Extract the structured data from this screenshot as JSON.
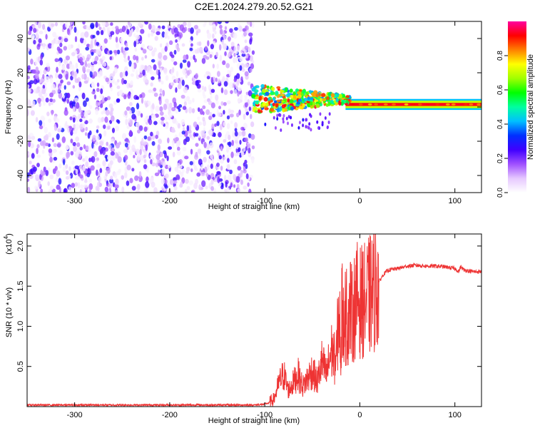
{
  "figure_title": "C2E1.2024.279.20.52.G21",
  "chart_data": [
    {
      "type": "heatmap",
      "title": "C2E1.2024.279.20.52.G21",
      "xlabel": "Height of straight line (km)",
      "ylabel": "Frequency (Hz)",
      "xlim": [
        -350,
        128
      ],
      "ylim": [
        -50,
        50
      ],
      "xticks": [
        -300,
        -200,
        -100,
        0,
        100
      ],
      "xtick_labels": [
        "-300",
        "-200",
        "-100",
        "0",
        "100"
      ],
      "yticks": [
        -40,
        -20,
        0,
        20,
        40
      ],
      "ytick_labels": [
        "-40",
        "-20",
        "0",
        "20",
        "40"
      ],
      "colorbar": {
        "label": "Normalized spectral amplitude",
        "range": [
          0,
          1
        ],
        "ticks": [
          0.0,
          0.2,
          0.4,
          0.6,
          0.8
        ],
        "tick_labels": [
          "0.0",
          "0.2",
          "0.4",
          "0.6",
          "0.8"
        ],
        "colors": [
          "#ffffff",
          "#e6c8ff",
          "#a050ff",
          "#4000ff",
          "#0030ff",
          "#00c0ff",
          "#00ffa0",
          "#00ff00",
          "#a0ff00",
          "#ffff00",
          "#ff8000",
          "#ff0000",
          "#ff00a0"
        ]
      },
      "regions": [
        {
          "name": "noise",
          "x_range": [
            -350,
            -112
          ],
          "y_range": [
            -50,
            50
          ],
          "amplitude_range": [
            0.02,
            0.3
          ]
        },
        {
          "name": "signal",
          "x_range": [
            -112,
            128
          ],
          "center_frequency": 1.5,
          "amplitude_range": [
            0.35,
            0.95
          ]
        }
      ],
      "grid": false
    },
    {
      "type": "line",
      "xlabel": "Height of straight line (km)",
      "ylabel": "SNR (10 * v/v)",
      "y_scale_label": "(x10",
      "y_scale_exponent": "4",
      "xlim": [
        -350,
        128
      ],
      "ylim": [
        0,
        2.15
      ],
      "xticks": [
        -300,
        -200,
        -100,
        0,
        100
      ],
      "xtick_labels": [
        "-300",
        "-200",
        "-100",
        "0",
        "100"
      ],
      "yticks": [
        0.5,
        1.0,
        1.5,
        2.0
      ],
      "ytick_labels": [
        "0.5",
        "1.0",
        "1.5",
        "2.0"
      ],
      "color": "#ee3333",
      "x": [
        -350,
        -300,
        -250,
        -200,
        -150,
        -110,
        -100,
        -95,
        -90,
        -85,
        -80,
        -75,
        -70,
        -65,
        -60,
        -55,
        -50,
        -45,
        -40,
        -35,
        -30,
        -25,
        -22,
        -20,
        -18,
        -15,
        -12,
        -10,
        -8,
        -5,
        -2,
        0,
        5,
        10,
        15,
        20,
        25,
        30,
        40,
        50,
        60,
        70,
        80,
        90,
        100,
        104,
        106,
        110,
        115,
        120,
        128
      ],
      "y": [
        0.02,
        0.02,
        0.02,
        0.02,
        0.02,
        0.02,
        0.03,
        0.05,
        0.1,
        0.3,
        0.4,
        0.2,
        0.3,
        0.4,
        0.25,
        0.35,
        0.45,
        0.3,
        0.55,
        0.4,
        0.7,
        0.55,
        1.2,
        0.75,
        1.3,
        0.95,
        1.15,
        1.25,
        1.1,
        1.3,
        1.35,
        1.3,
        1.32,
        1.38,
        1.45,
        1.55,
        1.65,
        1.7,
        1.72,
        1.75,
        1.76,
        1.75,
        1.75,
        1.74,
        1.72,
        1.68,
        1.74,
        1.7,
        1.69,
        1.68,
        1.68
      ],
      "grid": false
    }
  ]
}
